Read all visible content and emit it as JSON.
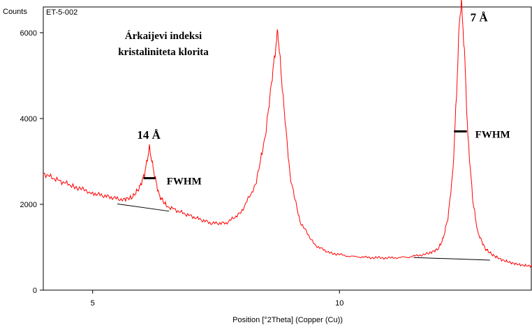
{
  "chart_data": {
    "type": "line",
    "sample_label": "ET-5-002",
    "ylabel": "Counts",
    "xlabel": "Position [°2Theta] (Copper (Cu))",
    "title_lines": [
      "Árkaijevi indeksi",
      "kristaliniteta klorita"
    ],
    "xlim": [
      4.0,
      13.9
    ],
    "ylim": [
      0,
      6600
    ],
    "x_ticks": [
      5,
      10
    ],
    "y_ticks": [
      0,
      2000,
      4000,
      6000
    ],
    "colors": {
      "pattern": "#ff0000",
      "baseline": "#000000",
      "fwhm_bar": "#000000"
    },
    "series": [
      {
        "type": "line",
        "points": [
          [
            4.0,
            2720
          ],
          [
            4.3,
            2560
          ],
          [
            4.6,
            2430
          ],
          [
            5.0,
            2260
          ],
          [
            5.3,
            2180
          ],
          [
            5.6,
            2110
          ],
          [
            5.8,
            2160
          ],
          [
            5.95,
            2390
          ],
          [
            6.05,
            2700
          ],
          [
            6.15,
            3320
          ],
          [
            6.25,
            2700
          ],
          [
            6.35,
            2200
          ],
          [
            6.5,
            1960
          ],
          [
            6.8,
            1810
          ],
          [
            7.1,
            1680
          ],
          [
            7.4,
            1560
          ],
          [
            7.7,
            1560
          ],
          [
            8.0,
            1800
          ],
          [
            8.3,
            2450
          ],
          [
            8.5,
            3600
          ],
          [
            8.65,
            5100
          ],
          [
            8.75,
            6050
          ],
          [
            8.85,
            4600
          ],
          [
            9.0,
            2650
          ],
          [
            9.2,
            1600
          ],
          [
            9.5,
            1050
          ],
          [
            9.8,
            870
          ],
          [
            10.2,
            790
          ],
          [
            10.6,
            760
          ],
          [
            11.0,
            750
          ],
          [
            11.4,
            770
          ],
          [
            11.8,
            850
          ],
          [
            12.0,
            960
          ],
          [
            12.1,
            1200
          ],
          [
            12.2,
            1700
          ],
          [
            12.3,
            2800
          ],
          [
            12.38,
            4800
          ],
          [
            12.43,
            6300
          ],
          [
            12.47,
            6700
          ],
          [
            12.53,
            5600
          ],
          [
            12.6,
            3600
          ],
          [
            12.7,
            2100
          ],
          [
            12.8,
            1350
          ],
          [
            12.95,
            970
          ],
          [
            13.1,
            820
          ],
          [
            13.3,
            700
          ],
          [
            13.5,
            630
          ],
          [
            13.7,
            580
          ],
          [
            13.9,
            560
          ]
        ]
      }
    ],
    "baselines": [
      {
        "from": [
          5.5,
          2010
        ],
        "to": [
          6.55,
          1840
        ]
      },
      {
        "from": [
          11.5,
          760
        ],
        "to": [
          13.05,
          700
        ]
      }
    ],
    "fwhm_markers": [
      {
        "x1": 6.03,
        "x2": 6.27,
        "y": 2610,
        "label": "FWHM",
        "label_at": [
          6.5,
          2460
        ]
      },
      {
        "x1": 12.32,
        "x2": 12.58,
        "y": 3700,
        "label": "FWHM",
        "label_at": [
          12.75,
          3550
        ]
      }
    ],
    "peak_labels": [
      {
        "text": "14 Å",
        "at": [
          5.9,
          3530
        ]
      },
      {
        "text": "7 Å",
        "at": [
          12.65,
          6270
        ]
      }
    ]
  }
}
